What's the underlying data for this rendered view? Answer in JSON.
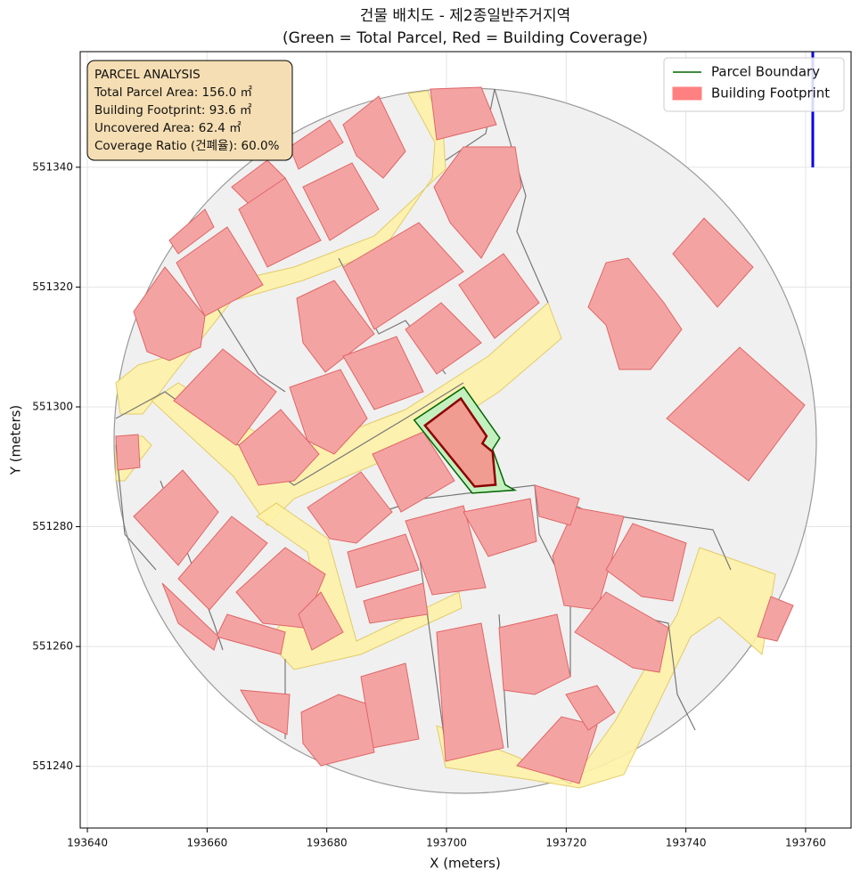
{
  "chart_data": {
    "type": "parcel-map",
    "title": "건물 배치도 - 제2종일반주거지역",
    "subtitle": "(Green = Total Parcel, Red = Building Coverage)",
    "x_label": "X (meters)",
    "y_label": "Y (meters)",
    "xlim": [
      193638.8,
      193767.6
    ],
    "ylim": [
      551229.7,
      551359.3
    ],
    "xticks": [
      193640,
      193660,
      193680,
      193700,
      193720,
      193740,
      193760
    ],
    "yticks": [
      551240,
      551260,
      551280,
      551300,
      551320,
      551340
    ],
    "grid": true,
    "legend": "upper right",
    "annotation": [
      "PARCEL ANALYSIS",
      "Total Parcel Area: 156.0 ㎡",
      "Building Footprint: 93.6 ㎡",
      "Uncovered Area: 62.4 ㎡",
      "Coverage Ratio (건폐율): 60.0%"
    ],
    "series": [
      {
        "name": "Parcel Boundary",
        "color": "#006400",
        "fill": "#c4f0c0",
        "x": [
          193694.6,
          193702.9,
          193708.9,
          193707.7,
          193709.8,
          193711.4,
          193704.3
        ],
        "y": [
          551297.8,
          551303.3,
          551294.8,
          551292.9,
          551287.0,
          551286.1,
          551285.6
        ]
      },
      {
        "name": "Building Footprint",
        "color": "#8b0000",
        "fill": "#ff8080",
        "x": [
          193696.4,
          193702.4,
          193706.7,
          193706.0,
          193707.7,
          193708.2,
          193704.7
        ],
        "y": [
          551296.9,
          551301.4,
          551295.1,
          551293.9,
          551292.5,
          551287.0,
          551286.7
        ]
      }
    ]
  }
}
